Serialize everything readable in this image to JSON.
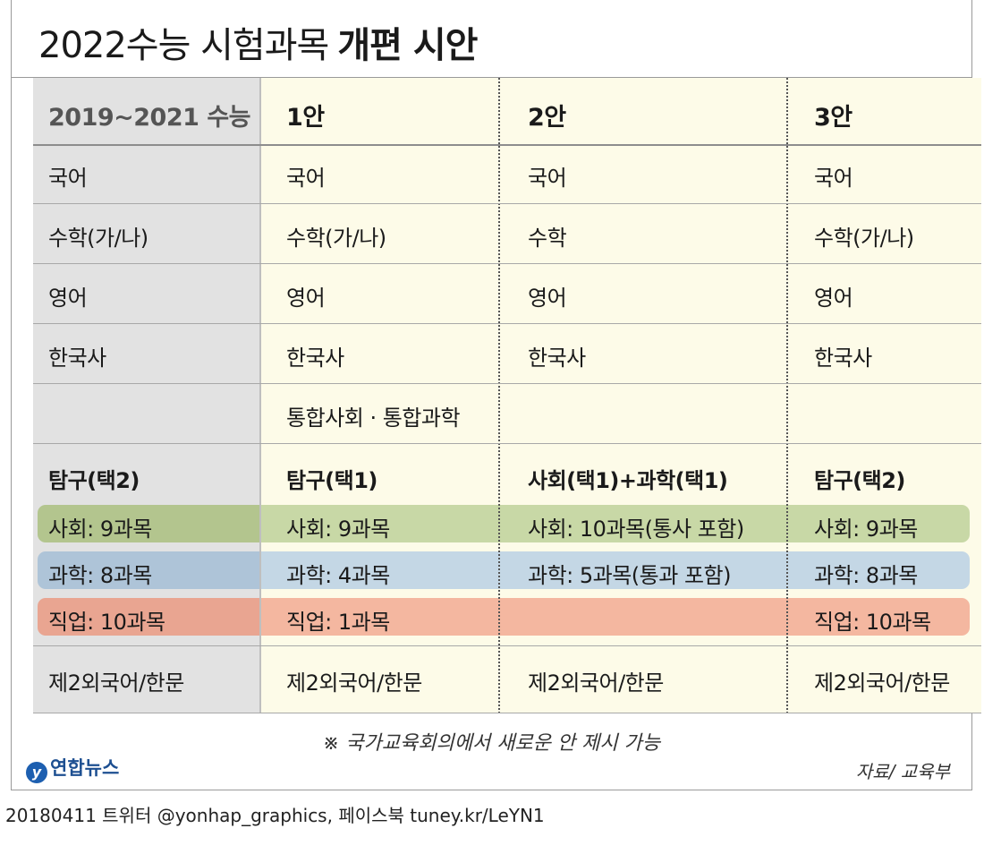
{
  "title": {
    "light": "2022수능 시험과목",
    "bold": "개편 시안"
  },
  "headers": [
    "2019~2021 수능",
    "1안",
    "2안",
    "3안"
  ],
  "rows": [
    [
      "국어",
      "국어",
      "국어",
      "국어"
    ],
    [
      "수학(가/나)",
      "수학(가/나)",
      "수학",
      "수학(가/나)"
    ],
    [
      "영어",
      "영어",
      "영어",
      "영어"
    ],
    [
      "한국사",
      "한국사",
      "한국사",
      "한국사"
    ],
    [
      "",
      "통합사회 · 통합과학",
      "",
      ""
    ]
  ],
  "inquiry": {
    "heads": [
      "탐구(택2)",
      "탐구(택1)",
      "사회(택1)+과학(택1)",
      "탐구(택2)"
    ],
    "social": [
      "사회: 9과목",
      "사회: 9과목",
      "사회: 10과목(통사 포함)",
      "사회: 9과목"
    ],
    "science": [
      "과학: 8과목",
      "과학: 4과목",
      "과학: 5과목(통과 포함)",
      "과학: 8과목"
    ],
    "vocational": [
      "직업: 10과목",
      "직업: 1과목",
      "",
      "직업: 10과목"
    ]
  },
  "foreign": [
    "제2외국어/한문",
    "제2외국어/한문",
    "제2외국어/한문",
    "제2외국어/한문"
  ],
  "note": "※ 국가교육회의에서 새로운 안 제시 가능",
  "logo": "연합뉴스",
  "source": "자료/ 교육부",
  "footer": "20180411  트위터 @yonhap_graphics, 페이스북 tuney.kr/LeYN1",
  "colors": {
    "social_band": "#c8d8a6",
    "science_band": "#c4d7e5",
    "vocational_band": "#f4b7a0",
    "left_column": "#e2e2e2",
    "plan_columns": "#fdfbe8"
  }
}
